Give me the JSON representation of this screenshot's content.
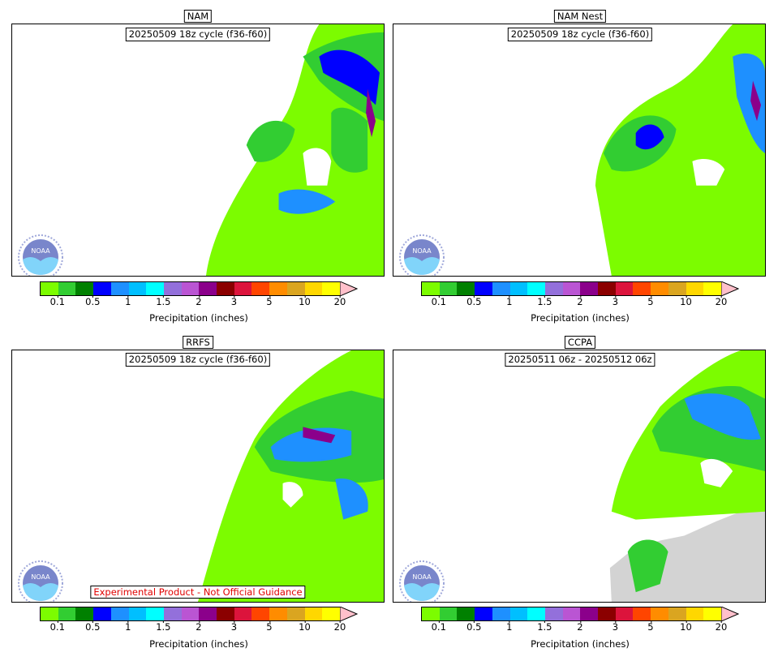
{
  "panels": [
    {
      "title": "NAM",
      "cycle": "20250509 18z cycle (f36-f60)"
    },
    {
      "title": "NAM Nest",
      "cycle": "20250509 18z cycle (f36-f60)"
    },
    {
      "title": "RRFS",
      "cycle": "20250509 18z cycle (f36-f60)",
      "notice": "Experimental Product - Not Official Guidance"
    },
    {
      "title": "CCPA",
      "cycle": "20250511 06z - 20250512 06z"
    }
  ],
  "colorbar": {
    "label": "Precipitation (inches)",
    "ticks": [
      "0.1",
      "0.5",
      "1",
      "1.5",
      "2",
      "3",
      "5",
      "10",
      "20"
    ],
    "colors": [
      "#7cfc00",
      "#32cd32",
      "#008000",
      "#0000ff",
      "#1e90ff",
      "#00bfff",
      "#00ffff",
      "#9370db",
      "#ba55d3",
      "#8b008b",
      "#8b0000",
      "#dc143c",
      "#ff4500",
      "#ff8c00",
      "#daa520",
      "#ffd700",
      "#ffff00"
    ],
    "extend_color": "#ffc0cb"
  },
  "logo": {
    "text": "NOAA",
    "icon": "noaa-logo-icon"
  }
}
